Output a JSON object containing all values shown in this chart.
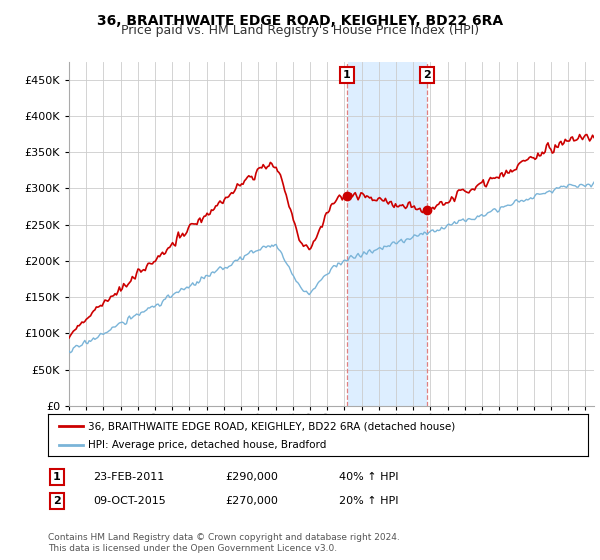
{
  "title": "36, BRAITHWAITE EDGE ROAD, KEIGHLEY, BD22 6RA",
  "subtitle": "Price paid vs. HM Land Registry's House Price Index (HPI)",
  "legend_line1": "36, BRAITHWAITE EDGE ROAD, KEIGHLEY, BD22 6RA (detached house)",
  "legend_line2": "HPI: Average price, detached house, Bradford",
  "footnote": "Contains HM Land Registry data © Crown copyright and database right 2024.\nThis data is licensed under the Open Government Licence v3.0.",
  "sale1_date": "23-FEB-2011",
  "sale1_price": "£290,000",
  "sale1_hpi": "40% ↑ HPI",
  "sale2_date": "09-OCT-2015",
  "sale2_price": "£270,000",
  "sale2_hpi": "20% ↑ HPI",
  "sale1_year": 2011.15,
  "sale2_year": 2015.78,
  "sale1_price_val": 290000,
  "sale2_price_val": 270000,
  "ylim": [
    0,
    475000
  ],
  "xlim_start": 1995,
  "xlim_end": 2025.5,
  "hpi_color": "#7ab4d8",
  "price_color": "#cc0000",
  "shaded_color": "#ddeeff",
  "grid_color": "#cccccc",
  "background_color": "#ffffff",
  "title_fontsize": 10,
  "subtitle_fontsize": 9
}
